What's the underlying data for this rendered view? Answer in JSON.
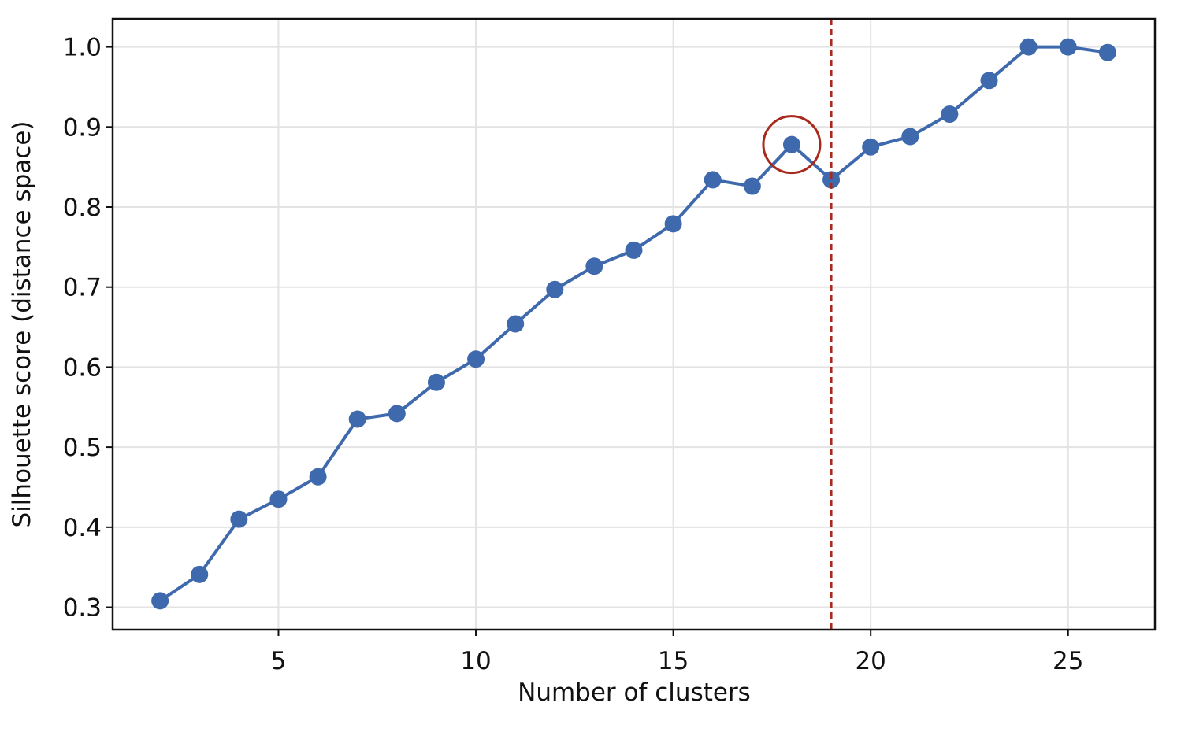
{
  "chart_data": {
    "type": "line",
    "x_label": "Number of clusters",
    "y_label": "Silhouette score (distance space)",
    "x": [
      2,
      3,
      4,
      5,
      6,
      7,
      8,
      9,
      10,
      11,
      12,
      13,
      14,
      15,
      16,
      17,
      18,
      19,
      20,
      21,
      22,
      23,
      24,
      25,
      26
    ],
    "series": [
      {
        "name": "Silhouette score",
        "color": "#3f69ad",
        "values": [
          0.308,
          0.341,
          0.41,
          0.435,
          0.463,
          0.535,
          0.542,
          0.581,
          0.61,
          0.654,
          0.697,
          0.726,
          0.746,
          0.779,
          0.834,
          0.826,
          0.878,
          0.834,
          0.875,
          0.888,
          0.916,
          0.958,
          1.0,
          1.0,
          0.993
        ]
      }
    ],
    "xlim": [
      0.8,
      27.2
    ],
    "ylim": [
      0.272,
      1.035
    ],
    "xticks": [
      5,
      10,
      15,
      20,
      25
    ],
    "yticks": [
      0.3,
      0.4,
      0.5,
      0.6,
      0.7,
      0.8,
      0.9,
      {
        "value": 1,
        "label": "1.0"
      }
    ],
    "grid": true,
    "vline": {
      "x": 19,
      "color": "#a82a1e"
    },
    "highlight": {
      "x": 18,
      "color": "#a82a1e"
    }
  }
}
